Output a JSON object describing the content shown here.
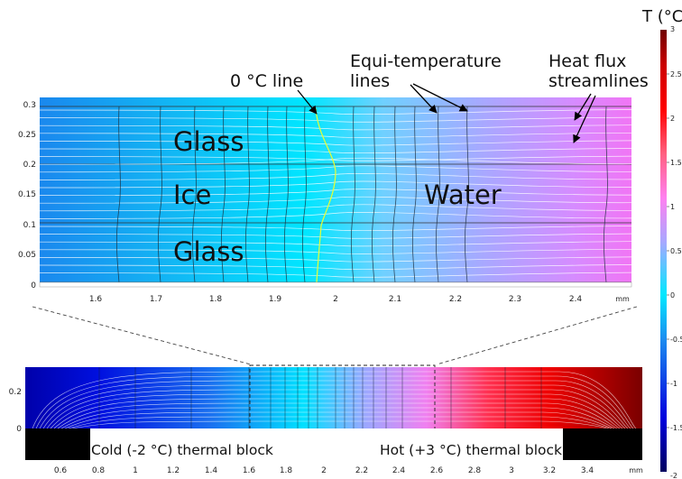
{
  "colorbar": {
    "title": "T (°C)",
    "max_label": "3",
    "min_label": "-2",
    "ticks": [
      {
        "value": 2.5,
        "label": "2.5"
      },
      {
        "value": 2,
        "label": "2"
      },
      {
        "value": 1.5,
        "label": "1.5"
      },
      {
        "value": 1,
        "label": "1"
      },
      {
        "value": 0.5,
        "label": "0.5"
      },
      {
        "value": 0,
        "label": "0"
      },
      {
        "value": -0.5,
        "label": "-0.5"
      },
      {
        "value": -1,
        "label": "-1"
      },
      {
        "value": -1.5,
        "label": "-1.5"
      }
    ]
  },
  "zoom_plot": {
    "x_ticks": [
      "1.6",
      "1.7",
      "1.8",
      "1.9",
      "2",
      "2.1",
      "2.2",
      "2.3",
      "2.4"
    ],
    "x_unit": "mm",
    "y_ticks": [
      "0",
      "0.05",
      "0.1",
      "0.15",
      "0.2",
      "0.25",
      "0.3"
    ],
    "regions": {
      "glass_top": "Glass",
      "ice": "Ice",
      "water": "Water",
      "glass_bottom": "Glass"
    }
  },
  "annotations": {
    "zero_line": "0 °C line",
    "equi_line1": "Equi-temperature",
    "equi_line2": "lines",
    "flux_line1": "Heat flux",
    "flux_line2": "streamlines"
  },
  "full_plot": {
    "x_ticks": [
      "0.6",
      "0.8",
      "1",
      "1.2",
      "1.4",
      "1.6",
      "1.8",
      "2",
      "2.2",
      "2.4",
      "2.6",
      "2.8",
      "3",
      "3.2",
      "3.4"
    ],
    "x_unit": "mm",
    "y_ticks": [
      "0",
      "0.2"
    ],
    "cold_block": "Cold (-2 °C) thermal block",
    "hot_block": "Hot (+3 °C) thermal block"
  },
  "colors": {
    "cold": "#0000cc",
    "ice_cyan": "#00e8ff",
    "water_lilac": "#b0a0ff",
    "warm_pink": "#f070ff",
    "hot": "#8b0000"
  }
}
